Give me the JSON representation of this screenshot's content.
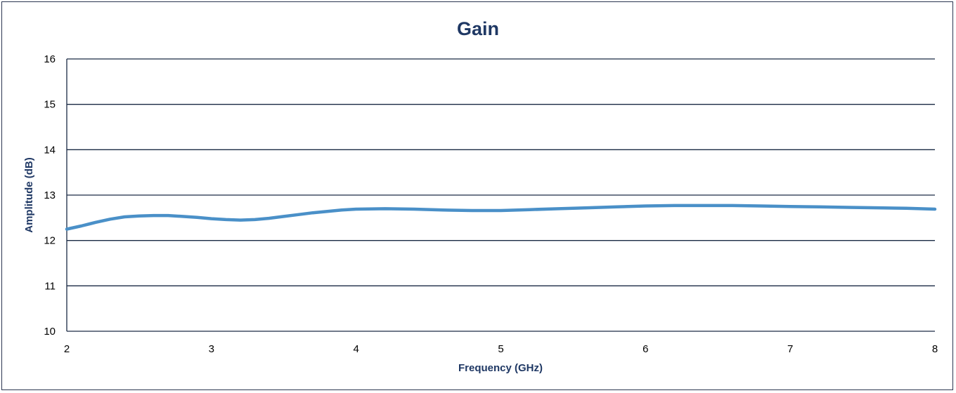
{
  "chart_data": {
    "type": "line",
    "title": "Gain",
    "xlabel": "Frequency (GHz)",
    "ylabel": "Amplitude (dB)",
    "xlim": [
      2,
      8
    ],
    "ylim": [
      10,
      16
    ],
    "x_ticks": [
      "2",
      "3",
      "4",
      "5",
      "6",
      "7",
      "8"
    ],
    "y_ticks": [
      "10",
      "11",
      "12",
      "13",
      "14",
      "15",
      "16"
    ],
    "grid": true,
    "legend": "none",
    "series": [
      {
        "color": "#4a90c8",
        "x": [
          2.0,
          2.1,
          2.2,
          2.3,
          2.4,
          2.5,
          2.6,
          2.7,
          2.8,
          2.9,
          3.0,
          3.1,
          3.2,
          3.3,
          3.4,
          3.5,
          3.6,
          3.7,
          3.8,
          3.9,
          4.0,
          4.2,
          4.4,
          4.6,
          4.8,
          5.0,
          5.2,
          5.4,
          5.6,
          5.8,
          6.0,
          6.2,
          6.4,
          6.6,
          6.8,
          7.0,
          7.2,
          7.4,
          7.6,
          7.8,
          8.0
        ],
        "y": [
          12.25,
          12.32,
          12.4,
          12.47,
          12.52,
          12.54,
          12.55,
          12.55,
          12.53,
          12.51,
          12.48,
          12.46,
          12.45,
          12.46,
          12.49,
          12.53,
          12.57,
          12.61,
          12.64,
          12.67,
          12.69,
          12.7,
          12.69,
          12.67,
          12.66,
          12.66,
          12.68,
          12.7,
          12.72,
          12.74,
          12.76,
          12.77,
          12.77,
          12.77,
          12.76,
          12.75,
          12.74,
          12.73,
          12.72,
          12.71,
          12.69
        ]
      }
    ]
  }
}
